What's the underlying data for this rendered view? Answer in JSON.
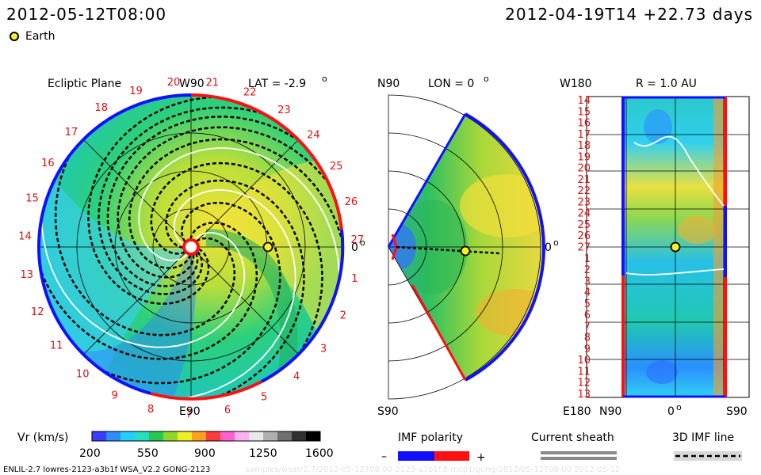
{
  "header": {
    "left": "2012-05-12T08:00",
    "right": "2012-04-19T14  +22.73 days"
  },
  "legend": {
    "earth_label": "Earth"
  },
  "panels": {
    "ecliptic": {
      "title": "Ecliptic Plane",
      "top_label": "W90",
      "bottom_label": "E90",
      "right_label": "0",
      "lat": "LAT = -2.9",
      "rotation_labels": [
        "20",
        "21",
        "22",
        "23",
        "24",
        "25",
        "26",
        "27",
        "1",
        "2",
        "3",
        "4",
        "5",
        "6",
        "7",
        "8",
        "9",
        "10",
        "11",
        "12",
        "13",
        "14",
        "15",
        "16",
        "17",
        "18",
        "19"
      ]
    },
    "meridional": {
      "top_label": "N90",
      "bottom_label": "S90",
      "right_label": "0",
      "lon": "LON = 0"
    },
    "radial": {
      "title": "R = 1.0 AU",
      "top_label": "W180",
      "bottom_label": "E180",
      "x_labels": [
        "N90",
        "0",
        "S90"
      ],
      "y_labels": [
        "14",
        "15",
        "16",
        "17",
        "18",
        "19",
        "20",
        "21",
        "22",
        "23",
        "24",
        "25",
        "26",
        "27",
        "1",
        "2",
        "3",
        "4",
        "5",
        "6",
        "7",
        "8",
        "9",
        "10",
        "11",
        "12",
        "13"
      ]
    }
  },
  "colorbar": {
    "label": "Vr (km/s)",
    "ticks": [
      "200",
      "550",
      "900",
      "1250",
      "1600"
    ],
    "colors": [
      "#3a3cff",
      "#2f8cff",
      "#22d0ff",
      "#22e0c0",
      "#28c850",
      "#8ed82a",
      "#f0f020",
      "#ffa020",
      "#ff3a3a",
      "#ff60d0",
      "#ffb0f0",
      "#e8e8e8",
      "#b0b0b0",
      "#707070",
      "#303030",
      "#000000"
    ]
  },
  "imf": {
    "label": "IMF polarity",
    "minus": "–",
    "plus": "+",
    "neg_color": "#1010ff",
    "pos_color": "#ff1010"
  },
  "sheath": {
    "label": "Current sheath"
  },
  "imfline": {
    "label": "3D IMF line"
  },
  "footer": {
    "left": "ENLIL-2.7 lowres-2123-a3b1f WSA_V2.2 GONG-2123",
    "faint": "samples/wsatr2.7/2012-05-12T08:00-2123-a3b1f.8-mcp1/gong/2012/05/12T08:00  2012-05-12"
  },
  "colors": {
    "solar_wind_low": "#33ccff",
    "solar_wind_mid": "#22cc99",
    "solar_wind_high": "#e6e03a",
    "earth": "#ffee22",
    "axis_red": "#dd1111"
  }
}
